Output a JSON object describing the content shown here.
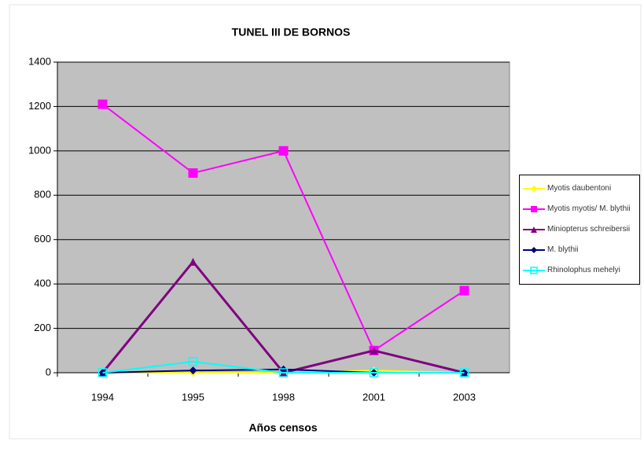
{
  "chart_data": {
    "type": "line",
    "title": "TUNEL III DE BORNOS",
    "x_label": "Años censos",
    "categories": [
      "1994",
      "1995",
      "1998",
      "2001",
      "2003"
    ],
    "series": [
      {
        "name": "Myotis daubentoni",
        "color": "#ffff00",
        "marker": "diamond",
        "values": [
          0,
          0,
          0,
          10,
          0
        ]
      },
      {
        "name": "Myotis myotis/ M. blythii",
        "color": "#ff00ff",
        "marker": "square",
        "values": [
          1210,
          900,
          1000,
          100,
          370
        ]
      },
      {
        "name": "Miniopterus schreibersii",
        "color": "#800080",
        "marker": "triangle",
        "values": [
          0,
          500,
          0,
          100,
          0
        ]
      },
      {
        "name": "M. blythii",
        "color": "#000080",
        "marker": "diamond",
        "values": [
          0,
          10,
          15,
          0,
          0
        ]
      },
      {
        "name": "Rhinolophus mehelyi",
        "color": "#00ffff",
        "marker": "hollow-square",
        "values": [
          0,
          50,
          0,
          0,
          0
        ]
      }
    ],
    "ylim": [
      0,
      1400
    ],
    "yticks": [
      0,
      200,
      400,
      600,
      800,
      1000,
      1200,
      1400
    ],
    "grid": true,
    "legend": "right"
  }
}
